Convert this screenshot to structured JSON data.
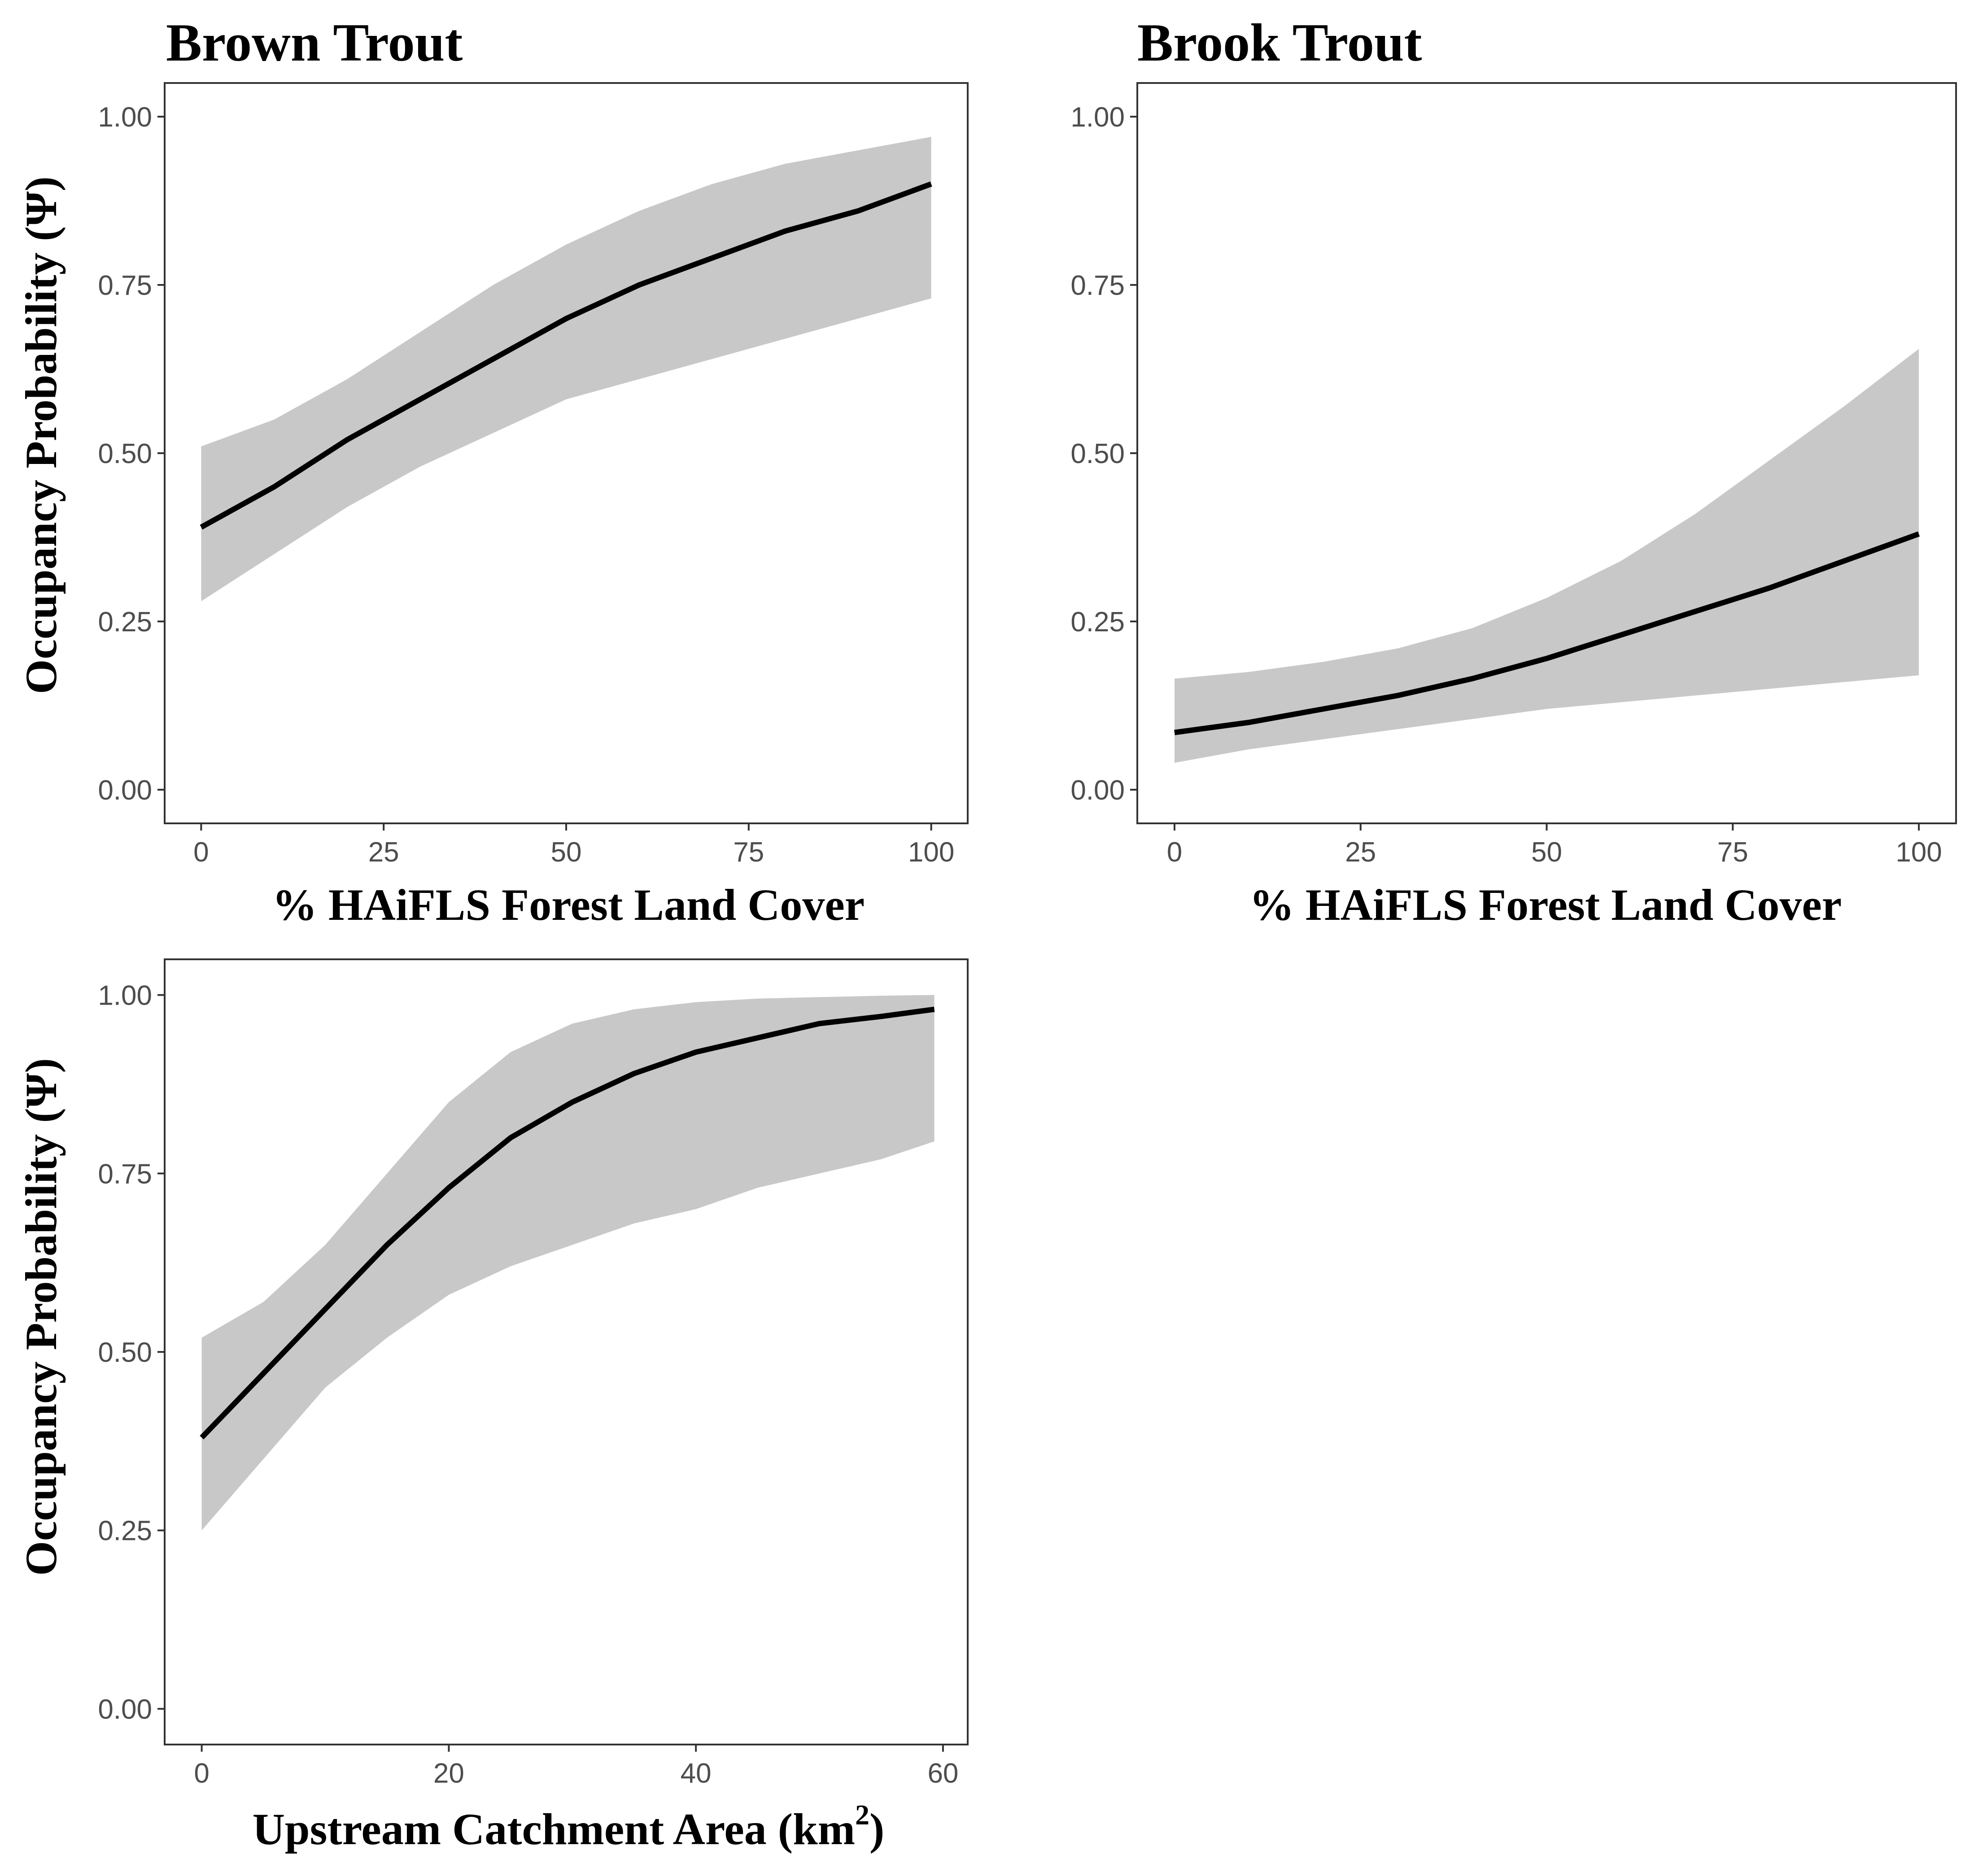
{
  "chart_data": [
    {
      "type": "line",
      "title": "Brown Trout",
      "xlabel": "% HAiFLS Forest Land Cover",
      "ylabel": "Occupancy Probability (Ψ)",
      "xlim": [
        -5,
        105
      ],
      "ylim": [
        -0.05,
        1.05
      ],
      "xticks": [
        0,
        25,
        50,
        75,
        100
      ],
      "xtick_labels": [
        "0",
        "25",
        "50",
        "75",
        "100"
      ],
      "yticks": [
        0,
        0.25,
        0.5,
        0.75,
        1
      ],
      "ytick_labels": [
        "0.00",
        "0.25",
        "0.50",
        "0.75",
        "1.00"
      ],
      "grid": false,
      "series": [
        {
          "x": [
            0,
            10,
            20,
            30,
            40,
            50,
            60,
            70,
            80,
            90,
            100
          ],
          "y": [
            0.39,
            0.45,
            0.52,
            0.58,
            0.64,
            0.7,
            0.75,
            0.79,
            0.83,
            0.86,
            0.9
          ],
          "lower": [
            0.28,
            0.35,
            0.42,
            0.48,
            0.53,
            0.58,
            0.61,
            0.64,
            0.67,
            0.7,
            0.73
          ],
          "upper": [
            0.51,
            0.55,
            0.61,
            0.68,
            0.75,
            0.81,
            0.86,
            0.9,
            0.93,
            0.95,
            0.97
          ]
        }
      ]
    },
    {
      "type": "line",
      "title": "Brook Trout",
      "xlabel": "% HAiFLS Forest Land Cover",
      "ylabel": "",
      "xlim": [
        -5,
        105
      ],
      "ylim": [
        -0.05,
        1.05
      ],
      "xticks": [
        0,
        25,
        50,
        75,
        100
      ],
      "xtick_labels": [
        "0",
        "25",
        "50",
        "75",
        "100"
      ],
      "yticks": [
        0,
        0.25,
        0.5,
        0.75,
        1
      ],
      "ytick_labels": [
        "0.00",
        "0.25",
        "0.50",
        "0.75",
        "1.00"
      ],
      "grid": false,
      "series": [
        {
          "x": [
            0,
            10,
            20,
            30,
            40,
            50,
            60,
            70,
            80,
            90,
            100
          ],
          "y": [
            0.085,
            0.1,
            0.12,
            0.14,
            0.165,
            0.195,
            0.23,
            0.265,
            0.3,
            0.34,
            0.38
          ],
          "lower": [
            0.04,
            0.06,
            0.075,
            0.09,
            0.105,
            0.12,
            0.13,
            0.14,
            0.15,
            0.16,
            0.17
          ],
          "upper": [
            0.165,
            0.175,
            0.19,
            0.21,
            0.24,
            0.285,
            0.34,
            0.41,
            0.49,
            0.57,
            0.655
          ]
        }
      ]
    },
    {
      "type": "line",
      "title": "",
      "xlabel": "Upstream Catchment Area (km²)",
      "xlabel_parts": {
        "main": "Upstream Catchment Area (km",
        "superscript": "2",
        "close": ")"
      },
      "ylabel": "Occupancy Probability (Ψ)",
      "xlim": [
        -3,
        62
      ],
      "ylim": [
        -0.05,
        1.05
      ],
      "xticks": [
        0,
        20,
        40,
        60
      ],
      "xtick_labels": [
        "0",
        "20",
        "40",
        "60"
      ],
      "yticks": [
        0,
        0.25,
        0.5,
        0.75,
        1
      ],
      "ytick_labels": [
        "0.00",
        "0.25",
        "0.50",
        "0.75",
        "1.00"
      ],
      "grid": false,
      "series": [
        {
          "x": [
            0,
            5,
            10,
            15,
            20,
            25,
            30,
            35,
            40,
            45,
            50,
            55,
            59.3
          ],
          "y": [
            0.38,
            0.47,
            0.56,
            0.65,
            0.73,
            0.8,
            0.85,
            0.89,
            0.92,
            0.94,
            0.96,
            0.97,
            0.98
          ],
          "lower": [
            0.25,
            0.35,
            0.45,
            0.52,
            0.58,
            0.62,
            0.65,
            0.68,
            0.7,
            0.73,
            0.75,
            0.77,
            0.795
          ],
          "upper": [
            0.52,
            0.57,
            0.65,
            0.75,
            0.85,
            0.92,
            0.96,
            0.98,
            0.99,
            0.995,
            0.997,
            0.999,
            1.0
          ]
        }
      ]
    }
  ]
}
